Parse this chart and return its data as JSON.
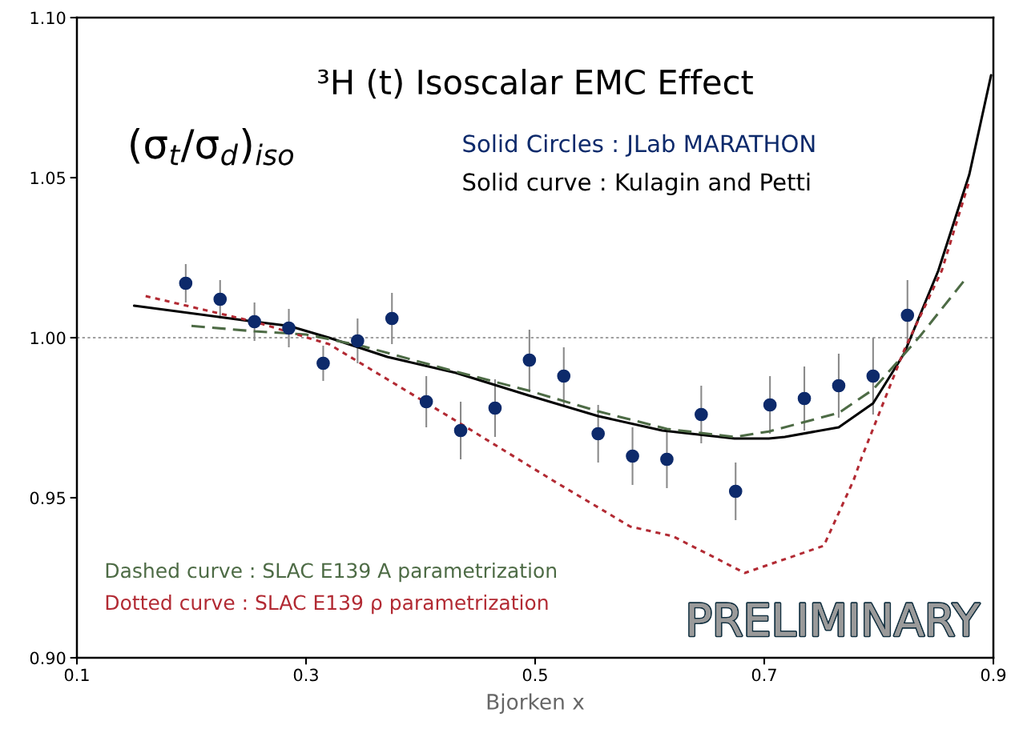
{
  "chart_data": {
    "type": "scatter",
    "title": "³H (t) Isoscalar EMC Effect",
    "xlabel": "Bjorken x",
    "xlim": [
      0.1,
      0.9
    ],
    "xticks": [
      0.1,
      0.3,
      0.5,
      0.7,
      0.9
    ],
    "ylim": [
      0.9,
      1.1
    ],
    "yticks": [
      {
        "value": 0.9,
        "label": "0.90"
      },
      {
        "value": 0.95,
        "label": "0.95"
      },
      {
        "value": 1.0,
        "label": "1.00"
      },
      {
        "value": 1.05,
        "label": "1.05"
      },
      {
        "value": 1.1,
        "label": "1.10"
      }
    ],
    "grid": false,
    "ref_lines": [
      {
        "axis": "y",
        "value": 1.0,
        "color": "#808080",
        "line_style": "dotted"
      }
    ],
    "annotations": [
      "(σ$_{t}$/σ$_{d}$)$_{iso}$",
      "Solid Circles : JLab MARATHON",
      "Solid curve : Kulagin and Petti",
      "Dashed curve : SLAC E139 A parametrization",
      "Dotted curve : SLAC E139 ρ parametrization",
      "PRELIMINARY"
    ],
    "series": [
      {
        "color": "#0d2a6b",
        "marker": "circle",
        "x": [
          0.195,
          0.225,
          0.255,
          0.285,
          0.315,
          0.345,
          0.375,
          0.405,
          0.435,
          0.465,
          0.495,
          0.525,
          0.555,
          0.585,
          0.615,
          0.645,
          0.675,
          0.705,
          0.735,
          0.765,
          0.795,
          0.825
        ],
        "values": [
          1.017,
          1.012,
          1.005,
          1.003,
          0.992,
          0.999,
          1.006,
          0.98,
          0.971,
          0.978,
          0.993,
          0.988,
          0.97,
          0.963,
          0.962,
          0.976,
          0.952,
          0.979,
          0.981,
          0.985,
          0.988,
          1.007
        ],
        "errors": [
          0.006,
          0.006,
          0.006,
          0.006,
          0.0055,
          0.007,
          0.008,
          0.008,
          0.009,
          0.009,
          0.0095,
          0.009,
          0.009,
          0.009,
          0.009,
          0.009,
          0.009,
          0.009,
          0.01,
          0.01,
          0.012,
          0.011
        ]
      },
      {
        "type": "line",
        "color": "#000000",
        "line_style": "solid",
        "x": [
          0.15,
          0.255,
          0.285,
          0.32,
          0.371,
          0.431,
          0.494,
          0.555,
          0.611,
          0.674,
          0.704,
          0.718,
          0.765,
          0.795,
          0.822,
          0.852,
          0.879,
          0.898
        ],
        "values": [
          1.01,
          1.005,
          1.0037,
          1.0,
          0.994,
          0.989,
          0.982,
          0.9755,
          0.971,
          0.9685,
          0.9685,
          0.969,
          0.972,
          0.9795,
          0.995,
          1.021,
          1.051,
          1.082
        ]
      },
      {
        "type": "line",
        "color": "#4d6b45",
        "line_style": "dashed",
        "x": [
          0.2,
          0.255,
          0.3,
          0.348,
          0.4245,
          0.494,
          0.555,
          0.615,
          0.674,
          0.704,
          0.765,
          0.795,
          0.836,
          0.876
        ],
        "values": [
          1.0037,
          1.002,
          1.001,
          0.9975,
          0.99,
          0.9835,
          0.977,
          0.9715,
          0.969,
          0.9707,
          0.9765,
          0.9838,
          1.0005,
          1.0185
        ]
      },
      {
        "type": "line",
        "color": "#b22a33",
        "line_style": "dotted",
        "x": [
          0.16,
          0.255,
          0.32,
          0.371,
          0.431,
          0.515,
          0.583,
          0.62,
          0.683,
          0.752,
          0.778,
          0.785,
          0.822,
          0.855,
          0.879
        ],
        "values": [
          1.013,
          1.005,
          0.998,
          0.987,
          0.974,
          0.9555,
          0.941,
          0.938,
          0.9265,
          0.935,
          0.9555,
          0.9625,
          0.996,
          1.021,
          1.049
        ]
      }
    ]
  }
}
